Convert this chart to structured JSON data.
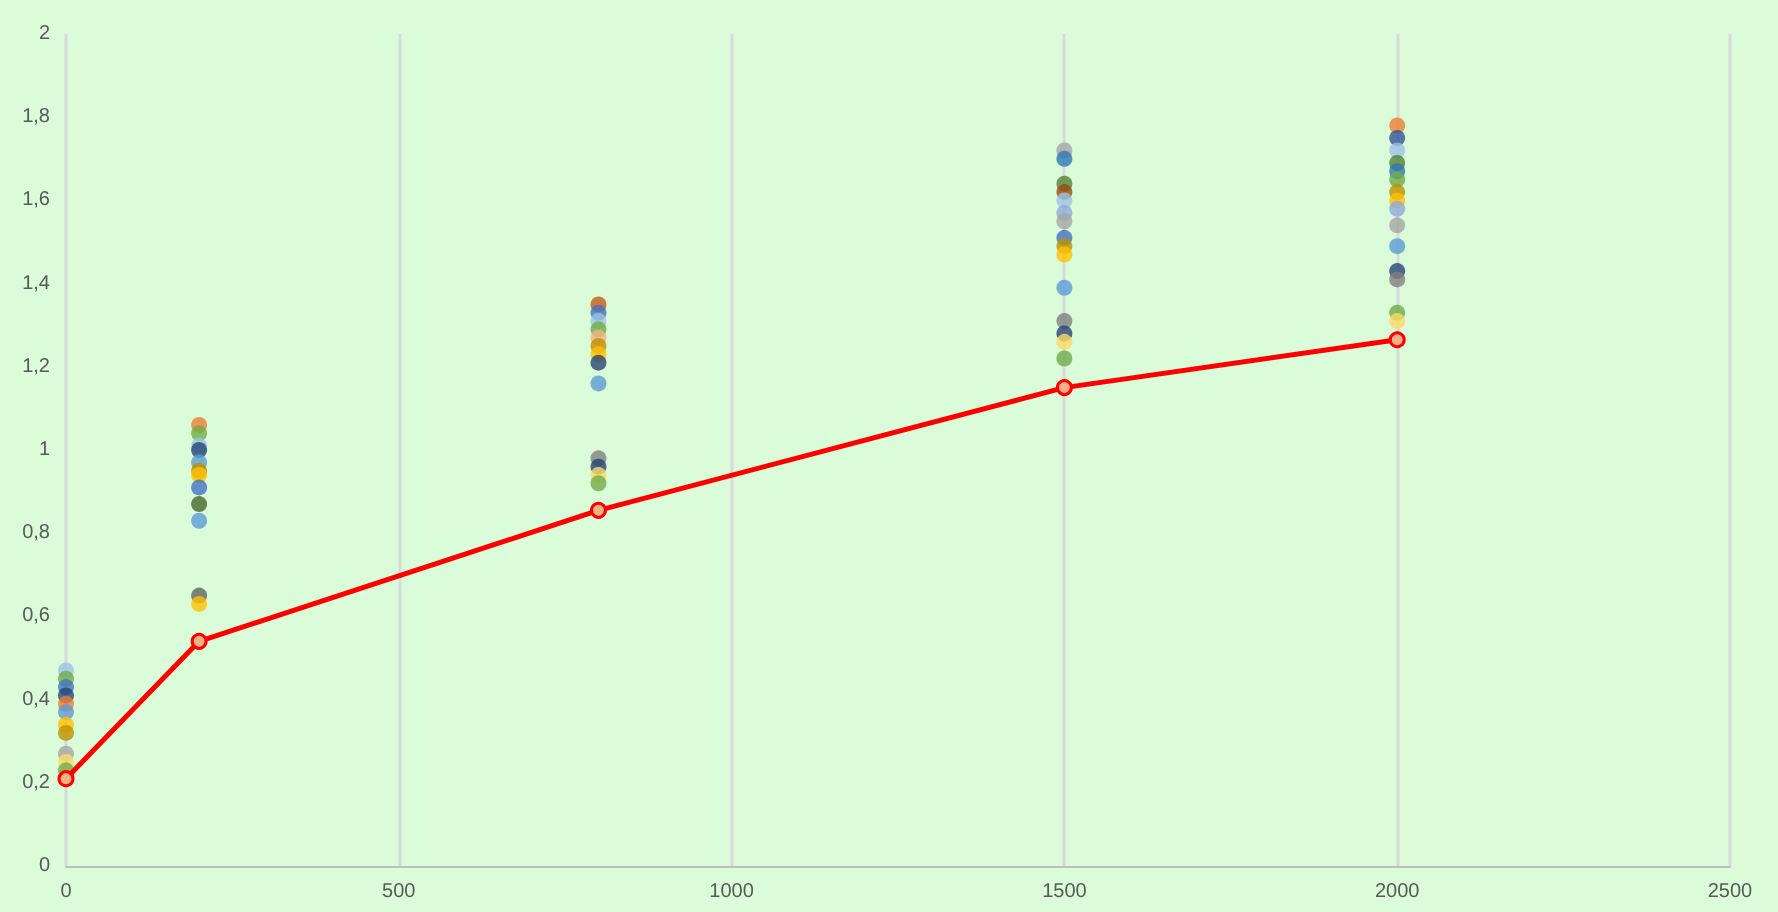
{
  "chart_data": {
    "type": "scatter",
    "xlim": [
      0,
      2500
    ],
    "xticks": [
      0,
      500,
      1000,
      1500,
      2000,
      2500
    ],
    "ylim": [
      0,
      2
    ],
    "yticks": [
      0,
      {
        "value": 0.2,
        "label": "0,2"
      },
      {
        "value": 0.4,
        "label": "0,4"
      },
      {
        "value": 0.6,
        "label": "0,6"
      },
      {
        "value": 0.8,
        "label": "0,8"
      },
      1,
      {
        "value": 1.2,
        "label": "1,2"
      },
      {
        "value": 1.4,
        "label": "1,4"
      },
      {
        "value": 1.6,
        "label": "1,6"
      },
      {
        "value": 1.8,
        "label": "1,8"
      },
      2
    ],
    "grid": "x",
    "marker": "circle",
    "series": [
      {
        "x": [
          0,
          0,
          0,
          0,
          0,
          0,
          0,
          0,
          0,
          0,
          0,
          200,
          200,
          200,
          200,
          200,
          200,
          200,
          200,
          200,
          200,
          200,
          200,
          800,
          800,
          800,
          800,
          800,
          800,
          800,
          800,
          800,
          800,
          800,
          800,
          800,
          1500,
          1500,
          1500,
          1500,
          1500,
          1500,
          1500,
          1500,
          1500,
          1500,
          1500,
          1500,
          1500,
          1500,
          1500,
          2000,
          2000,
          2000,
          2000,
          2000,
          2000,
          2000,
          2000,
          2000,
          2000,
          2000,
          2000,
          2000,
          2000,
          2000
        ],
        "values": [
          0.47,
          0.45,
          0.43,
          0.41,
          0.39,
          0.37,
          0.34,
          0.32,
          0.27,
          0.25,
          0.23,
          1.06,
          1.04,
          1.01,
          1.0,
          0.97,
          0.95,
          0.94,
          0.91,
          0.87,
          0.83,
          0.65,
          0.63,
          1.35,
          1.33,
          1.31,
          1.29,
          1.27,
          1.25,
          1.23,
          1.21,
          1.16,
          0.98,
          0.96,
          0.94,
          0.92,
          1.72,
          1.7,
          1.64,
          1.62,
          1.6,
          1.57,
          1.55,
          1.51,
          1.49,
          1.47,
          1.39,
          1.31,
          1.28,
          1.26,
          1.22,
          1.78,
          1.75,
          1.72,
          1.69,
          1.67,
          1.65,
          1.62,
          1.6,
          1.58,
          1.54,
          1.49,
          1.43,
          1.41,
          1.33,
          1.31
        ],
        "colors": [
          "#9dc3e6",
          "#70ad47",
          "#4472c4",
          "#264478",
          "#ed7d31",
          "#5b9bd5",
          "#ffc000",
          "#bf9000",
          "#a5a5a5",
          "#ffd966",
          "#70ad47",
          "#ed7d31",
          "#70ad47",
          "#9dc3e6",
          "#264478",
          "#5b9bd5",
          "#bf9000",
          "#ffc000",
          "#4472c4",
          "#43682b",
          "#5b9bd5",
          "#636363",
          "#ffc000",
          "#c55a11",
          "#4472c4",
          "#9dc3e6",
          "#70ad47",
          "#f4b183",
          "#bf9000",
          "#ffc000",
          "#264478",
          "#5b9bd5",
          "#7f7f7f",
          "#264478",
          "#ffd966",
          "#70ad47",
          "#a5a5a5",
          "#2e75b6",
          "#548235",
          "#9e480e",
          "#9dc3e6",
          "#8faadc",
          "#a5a5a5",
          "#4472c4",
          "#bf9000",
          "#ffc000",
          "#5b9bd5",
          "#7f7f7f",
          "#264478",
          "#ffd966",
          "#70ad47",
          "#ed7d31",
          "#2f5597",
          "#9dc3e6",
          "#548235",
          "#2e75b6",
          "#70ad47",
          "#bf9000",
          "#ffc000",
          "#8faadc",
          "#a5a5a5",
          "#5b9bd5",
          "#264478",
          "#7f7f7f",
          "#70ad47",
          "#ffd966"
        ]
      },
      {
        "type": "line",
        "x": [
          0,
          200,
          800,
          1500,
          2000
        ],
        "values": [
          0.21,
          0.54,
          0.855,
          1.15,
          1.265
        ],
        "color": "#ff0000",
        "marker": "circle",
        "line_style": "solid"
      }
    ]
  }
}
